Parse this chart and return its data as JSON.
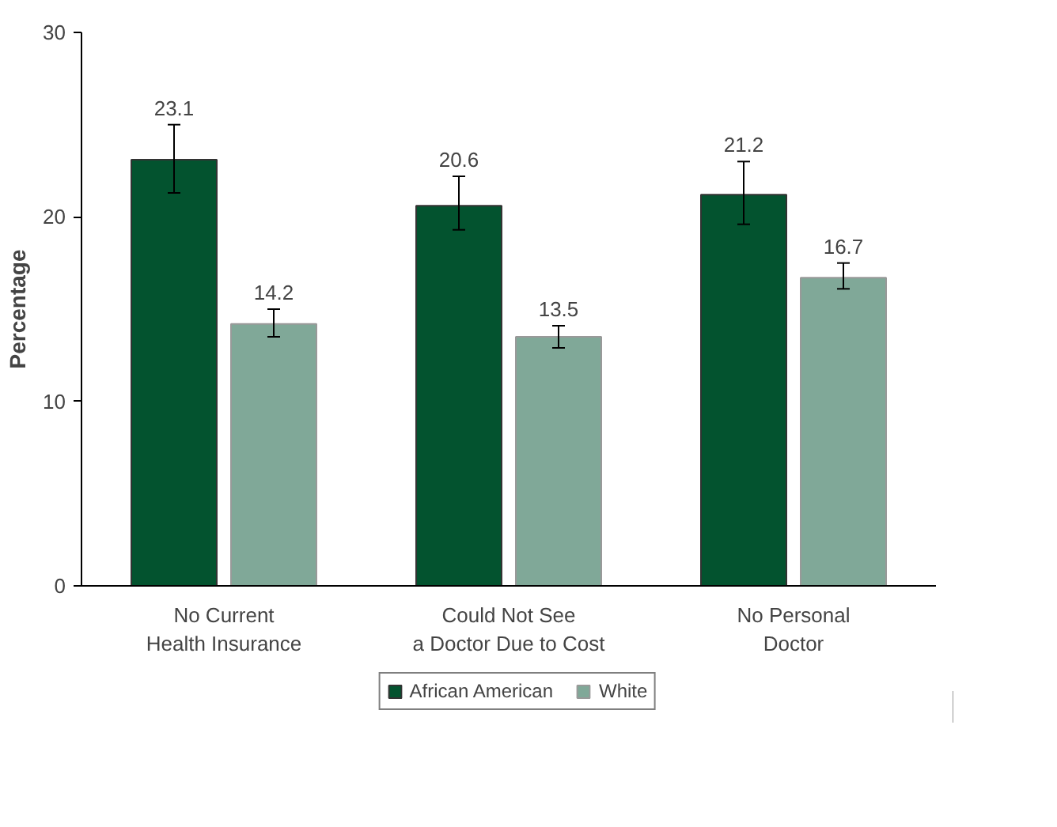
{
  "chart_data": {
    "type": "bar",
    "ylabel": "Percentage",
    "categories": [
      "No Current\nHealth Insurance",
      "Could Not See\na Doctor Due to Cost",
      "No Personal\nDoctor"
    ],
    "series": [
      {
        "name": "African American",
        "color": "#03532f",
        "values": [
          23.1,
          20.6,
          21.2
        ],
        "errors": [
          [
            21.3,
            25.0
          ],
          [
            19.3,
            22.2
          ],
          [
            19.6,
            23.0
          ]
        ]
      },
      {
        "name": "White",
        "color": "#80a898",
        "values": [
          14.2,
          13.5,
          16.7
        ],
        "errors": [
          [
            13.5,
            15.0
          ],
          [
            12.9,
            14.1
          ],
          [
            16.1,
            17.5
          ]
        ]
      }
    ],
    "ylim": [
      0,
      30
    ],
    "yticks": [
      0,
      10,
      20,
      30
    ],
    "grid": false,
    "legend": "bottom",
    "data_labels": true
  }
}
